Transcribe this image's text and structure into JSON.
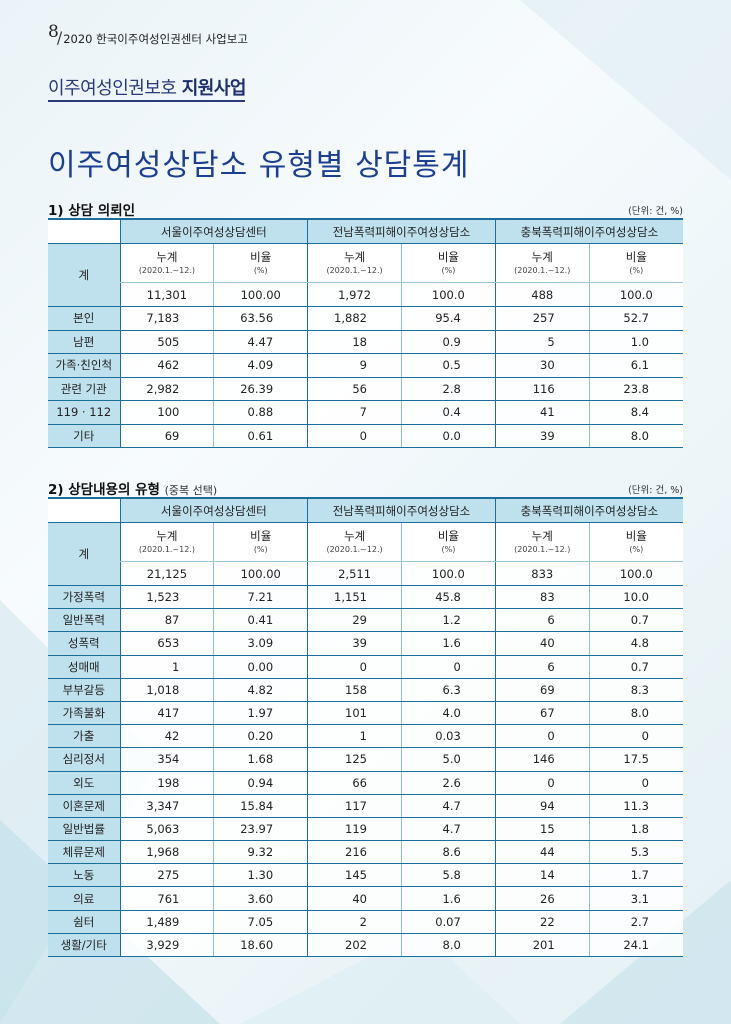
{
  "header": {
    "page_number": "8",
    "report_title": "2020 한국이주여성인권센터 사업보고"
  },
  "section": {
    "prefix": "이주여성인권보호 ",
    "bold": "지원사업"
  },
  "title": "이주여성상담소 유형별 상담통계",
  "groups": [
    "서울이주여성상담센터",
    "전남폭력피해이주여성상담소",
    "충북폭력피해이주여성상담소"
  ],
  "col_count_label": "누계",
  "col_count_sub": "(2020.1.~12.)",
  "col_ratio_label": "비율",
  "col_ratio_sub": "(%)",
  "unit": "(단위: 건, %)",
  "table1": {
    "heading": "1) 상담 의뢰인",
    "total_label": "계",
    "total": [
      "11,301",
      "100.00",
      "1,972",
      "100.0",
      "488",
      "100.0"
    ],
    "rows": [
      {
        "label": "본인",
        "v": [
          "7,183",
          "63.56",
          "1,882",
          "95.4",
          "257",
          "52.7"
        ]
      },
      {
        "label": "남편",
        "v": [
          "505",
          "4.47",
          "18",
          "0.9",
          "5",
          "1.0"
        ]
      },
      {
        "label": "가족·친인척",
        "v": [
          "462",
          "4.09",
          "9",
          "0.5",
          "30",
          "6.1"
        ]
      },
      {
        "label": "관련 기관",
        "v": [
          "2,982",
          "26.39",
          "56",
          "2.8",
          "116",
          "23.8"
        ]
      },
      {
        "label": "119 · 112",
        "v": [
          "100",
          "0.88",
          "7",
          "0.4",
          "41",
          "8.4"
        ]
      },
      {
        "label": "기타",
        "v": [
          "69",
          "0.61",
          "0",
          "0.0",
          "39",
          "8.0"
        ]
      }
    ]
  },
  "table2": {
    "heading": "2) 상담내용의 유형",
    "note": "(중복 선택)",
    "total_label": "계",
    "total": [
      "21,125",
      "100.00",
      "2,511",
      "100.0",
      "833",
      "100.0"
    ],
    "rows": [
      {
        "label": "가정폭력",
        "v": [
          "1,523",
          "7.21",
          "1,151",
          "45.8",
          "83",
          "10.0"
        ]
      },
      {
        "label": "일반폭력",
        "v": [
          "87",
          "0.41",
          "29",
          "1.2",
          "6",
          "0.7"
        ]
      },
      {
        "label": "성폭력",
        "v": [
          "653",
          "3.09",
          "39",
          "1.6",
          "40",
          "4.8"
        ]
      },
      {
        "label": "성매매",
        "v": [
          "1",
          "0.00",
          "0",
          "0",
          "6",
          "0.7"
        ]
      },
      {
        "label": "부부갈등",
        "v": [
          "1,018",
          "4.82",
          "158",
          "6.3",
          "69",
          "8.3"
        ]
      },
      {
        "label": "가족불화",
        "v": [
          "417",
          "1.97",
          "101",
          "4.0",
          "67",
          "8.0"
        ]
      },
      {
        "label": "가출",
        "v": [
          "42",
          "0.20",
          "1",
          "0.03",
          "0",
          "0"
        ]
      },
      {
        "label": "심리정서",
        "v": [
          "354",
          "1.68",
          "125",
          "5.0",
          "146",
          "17.5"
        ]
      },
      {
        "label": "외도",
        "v": [
          "198",
          "0.94",
          "66",
          "2.6",
          "0",
          "0"
        ]
      },
      {
        "label": "이혼문제",
        "v": [
          "3,347",
          "15.84",
          "117",
          "4.7",
          "94",
          "11.3"
        ]
      },
      {
        "label": "일반법률",
        "v": [
          "5,063",
          "23.97",
          "119",
          "4.7",
          "15",
          "1.8"
        ]
      },
      {
        "label": "체류문제",
        "v": [
          "1,968",
          "9.32",
          "216",
          "8.6",
          "44",
          "5.3"
        ]
      },
      {
        "label": "노동",
        "v": [
          "275",
          "1.30",
          "145",
          "5.8",
          "14",
          "1.7"
        ]
      },
      {
        "label": "의료",
        "v": [
          "761",
          "3.60",
          "40",
          "1.6",
          "26",
          "3.1"
        ]
      },
      {
        "label": "쉼터",
        "v": [
          "1,489",
          "7.05",
          "2",
          "0.07",
          "22",
          "2.7"
        ]
      },
      {
        "label": "생활/기타",
        "v": [
          "3,929",
          "18.60",
          "202",
          "8.0",
          "201",
          "24.1"
        ]
      }
    ]
  }
}
